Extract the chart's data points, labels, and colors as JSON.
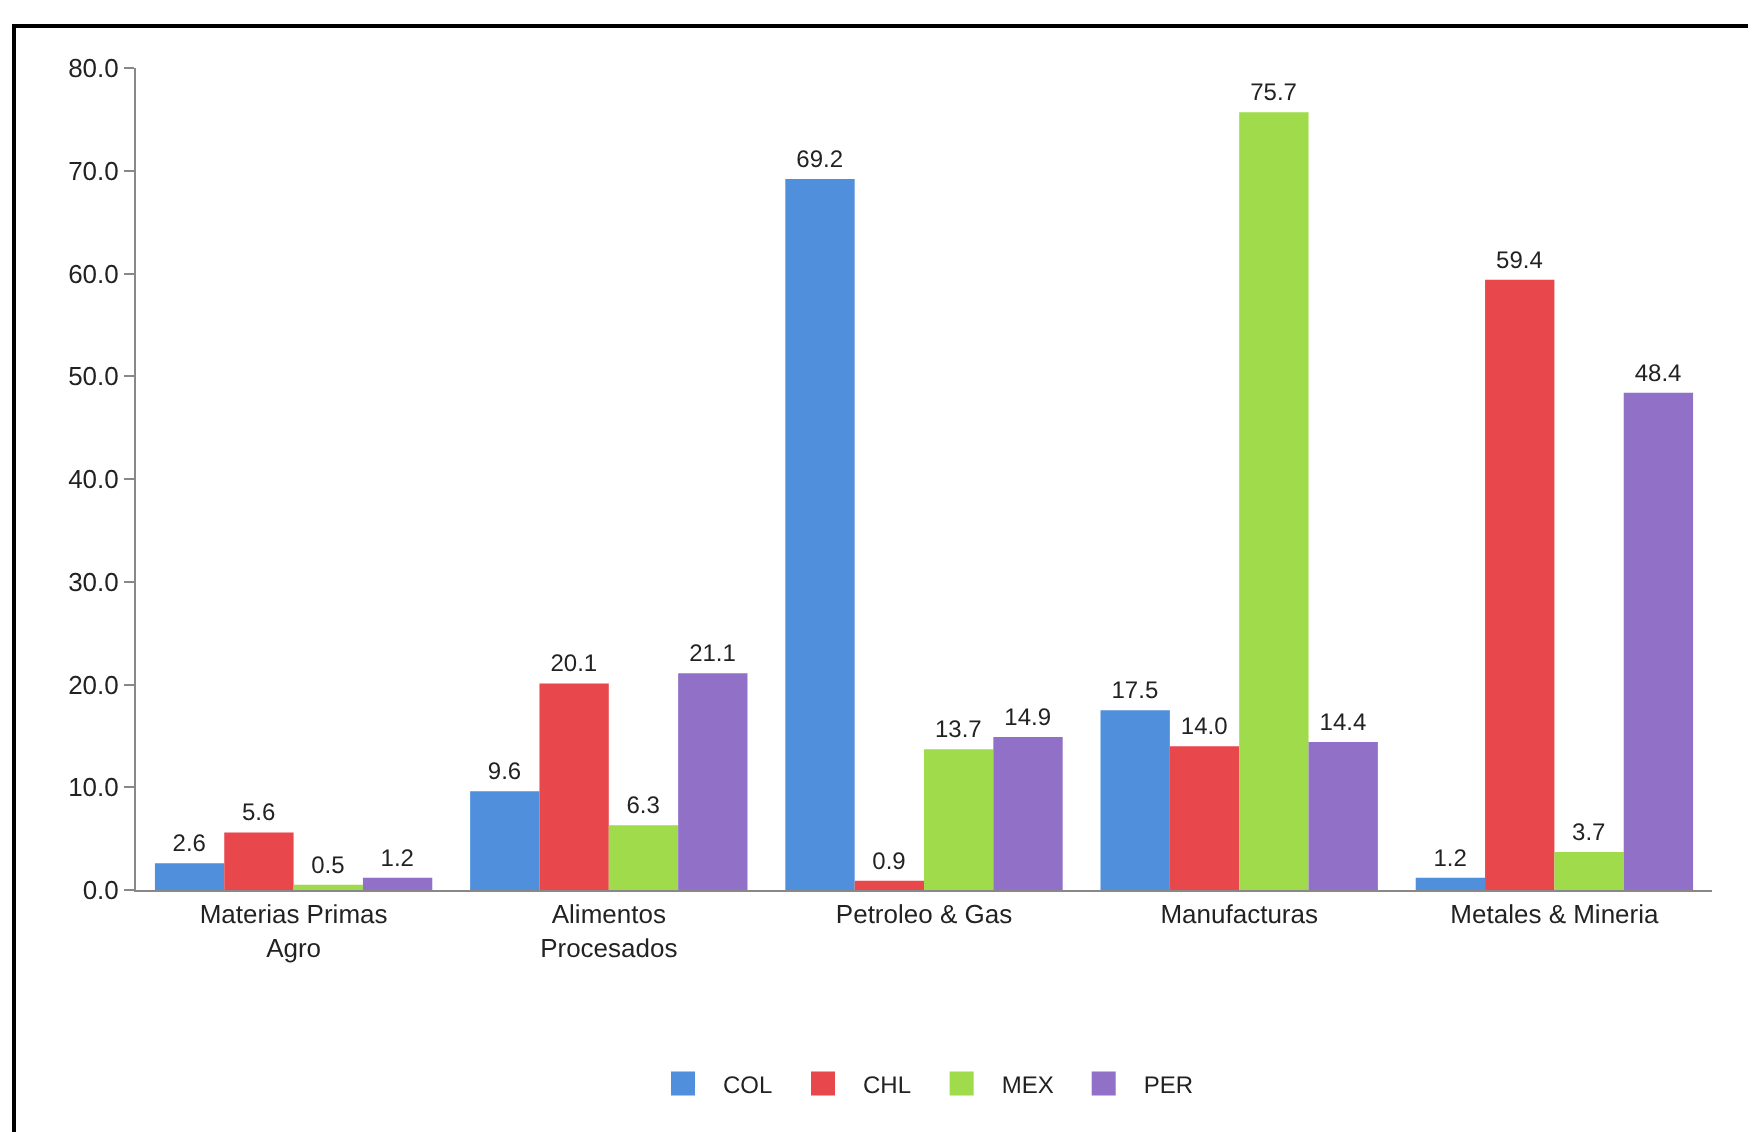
{
  "chart_data": {
    "type": "bar",
    "categories": [
      "Materias Primas Agro",
      "Alimentos Procesados",
      "Petroleo & Gas",
      "Manufacturas",
      "Metales & Mineria"
    ],
    "series": [
      {
        "name": "COL",
        "color": "#4f8fdc",
        "values": [
          2.6,
          9.6,
          69.2,
          17.5,
          1.2
        ],
        "value_labels": [
          "2.6",
          "9.6",
          "69.2",
          "17.5",
          "1.2"
        ]
      },
      {
        "name": "CHL",
        "color": "#e8474c",
        "values": [
          5.6,
          20.1,
          0.9,
          14.0,
          59.4
        ],
        "value_labels": [
          "5.6",
          "20.1",
          "0.9",
          "14.0",
          "59.4"
        ]
      },
      {
        "name": "MEX",
        "color": "#9fdb4a",
        "values": [
          0.5,
          6.3,
          13.7,
          75.7,
          3.7
        ],
        "value_labels": [
          "0.5",
          "6.3",
          "13.7",
          "75.7",
          "3.7"
        ]
      },
      {
        "name": "PER",
        "color": "#9170c8",
        "values": [
          1.2,
          21.1,
          14.9,
          14.4,
          48.4
        ],
        "value_labels": [
          "1.2",
          "21.1",
          "14.9",
          "14.4",
          "48.4"
        ]
      }
    ],
    "ylim": [
      0,
      80
    ],
    "yticks": [
      {
        "value": 0,
        "label": "0.0"
      },
      {
        "value": 10,
        "label": "10.0"
      },
      {
        "value": 20,
        "label": "20.0"
      },
      {
        "value": 30,
        "label": "30.0"
      },
      {
        "value": 40,
        "label": "40.0"
      },
      {
        "value": 50,
        "label": "50.0"
      },
      {
        "value": 60,
        "label": "60.0"
      },
      {
        "value": 70,
        "label": "70.0"
      },
      {
        "value": 80,
        "label": "80.0"
      }
    ],
    "grid": false,
    "legend": "bottom"
  }
}
